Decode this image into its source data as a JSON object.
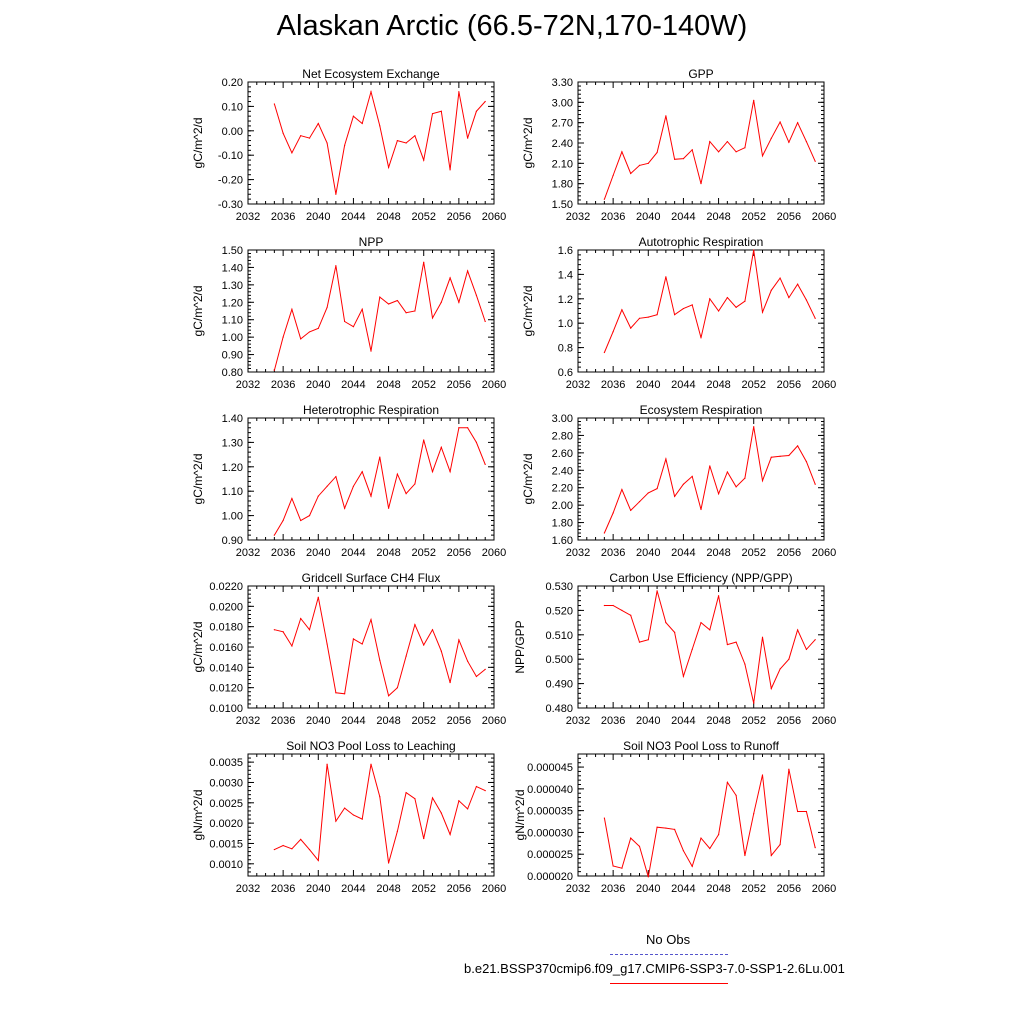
{
  "title": "Alaskan Arctic (66.5-72N,170-140W)",
  "colors": {
    "series": "#ff0000",
    "obs": "#5555cc",
    "axis": "#000000"
  },
  "legend": {
    "obs_label": "No Obs",
    "case_label": "b.e21.BSSP370cmip6.f09_g17.CMIP6-SSP3-7.0-SSP1-2.6Lu.001"
  },
  "chart_data": [
    {
      "type": "line",
      "title": "Net Ecosystem Exchange",
      "ylabel": "gC/m^2/d",
      "xlim": [
        2032,
        2060
      ],
      "xticks": [
        "2032",
        "2036",
        "2040",
        "2044",
        "2048",
        "2052",
        "2056",
        "2060"
      ],
      "ylim": [
        -0.3,
        0.2
      ],
      "yticks": [
        "-0.30",
        "-0.20",
        "-0.10",
        "0.00",
        "0.10",
        "0.20"
      ],
      "x": [
        2035,
        2036,
        2037,
        2038,
        2039,
        2040,
        2041,
        2042,
        2043,
        2044,
        2045,
        2046,
        2047,
        2048,
        2049,
        2050,
        2051,
        2052,
        2053,
        2054,
        2055,
        2056,
        2057,
        2058,
        2059
      ],
      "values": [
        0.11,
        -0.01,
        -0.09,
        -0.02,
        -0.03,
        0.03,
        -0.05,
        -0.26,
        -0.06,
        0.06,
        0.03,
        0.16,
        0.02,
        -0.15,
        -0.04,
        -0.05,
        -0.02,
        -0.12,
        0.07,
        0.08,
        -0.16,
        0.16,
        -0.03,
        0.08,
        0.12
      ]
    },
    {
      "type": "line",
      "title": "GPP",
      "ylabel": "gC/m^2/d",
      "xlim": [
        2032,
        2060
      ],
      "xticks": [
        "2032",
        "2036",
        "2040",
        "2044",
        "2048",
        "2052",
        "2056",
        "2060"
      ],
      "ylim": [
        1.5,
        3.3
      ],
      "yticks": [
        "1.50",
        "1.80",
        "2.10",
        "2.40",
        "2.70",
        "3.00",
        "3.30"
      ],
      "x": [
        2035,
        2036,
        2037,
        2038,
        2039,
        2040,
        2041,
        2042,
        2043,
        2044,
        2045,
        2046,
        2047,
        2048,
        2049,
        2050,
        2051,
        2052,
        2053,
        2054,
        2055,
        2056,
        2057,
        2058,
        2059
      ],
      "values": [
        1.57,
        1.92,
        2.27,
        1.95,
        2.07,
        2.1,
        2.26,
        2.8,
        2.16,
        2.17,
        2.3,
        1.8,
        2.42,
        2.27,
        2.42,
        2.27,
        2.33,
        3.03,
        2.21,
        2.47,
        2.71,
        2.41,
        2.7,
        2.42,
        2.13
      ]
    },
    {
      "type": "line",
      "title": "NPP",
      "ylabel": "gC/m^2/d",
      "xlim": [
        2032,
        2060
      ],
      "xticks": [
        "2032",
        "2036",
        "2040",
        "2044",
        "2048",
        "2052",
        "2056",
        "2060"
      ],
      "ylim": [
        0.8,
        1.5
      ],
      "yticks": [
        "0.80",
        "0.90",
        "1.00",
        "1.10",
        "1.20",
        "1.30",
        "1.40",
        "1.50"
      ],
      "x": [
        2035,
        2036,
        2037,
        2038,
        2039,
        2040,
        2041,
        2042,
        2043,
        2044,
        2045,
        2046,
        2047,
        2048,
        2049,
        2050,
        2051,
        2052,
        2053,
        2054,
        2055,
        2056,
        2057,
        2058,
        2059
      ],
      "values": [
        0.81,
        1.0,
        1.16,
        0.99,
        1.03,
        1.05,
        1.17,
        1.41,
        1.09,
        1.06,
        1.16,
        0.92,
        1.23,
        1.19,
        1.21,
        1.14,
        1.15,
        1.43,
        1.11,
        1.2,
        1.34,
        1.2,
        1.38,
        1.24,
        1.09
      ]
    },
    {
      "type": "line",
      "title": "Autotrophic Respiration",
      "ylabel": "gC/m^2/d",
      "xlim": [
        2032,
        2060
      ],
      "xticks": [
        "2032",
        "2036",
        "2040",
        "2044",
        "2048",
        "2052",
        "2056",
        "2060"
      ],
      "ylim": [
        0.6,
        1.6
      ],
      "yticks": [
        "0.6",
        "0.8",
        "1.0",
        "1.2",
        "1.4",
        "1.6"
      ],
      "x": [
        2035,
        2036,
        2037,
        2038,
        2039,
        2040,
        2041,
        2042,
        2043,
        2044,
        2045,
        2046,
        2047,
        2048,
        2049,
        2050,
        2051,
        2052,
        2053,
        2054,
        2055,
        2056,
        2057,
        2058,
        2059
      ],
      "values": [
        0.76,
        0.93,
        1.11,
        0.96,
        1.04,
        1.05,
        1.07,
        1.38,
        1.07,
        1.12,
        1.15,
        0.88,
        1.2,
        1.1,
        1.21,
        1.13,
        1.18,
        1.6,
        1.09,
        1.27,
        1.37,
        1.21,
        1.32,
        1.19,
        1.04
      ]
    },
    {
      "type": "line",
      "title": "Heterotrophic Respiration",
      "ylabel": "gC/m^2/d",
      "xlim": [
        2032,
        2060
      ],
      "xticks": [
        "2032",
        "2036",
        "2040",
        "2044",
        "2048",
        "2052",
        "2056",
        "2060"
      ],
      "ylim": [
        0.9,
        1.4
      ],
      "yticks": [
        "0.90",
        "1.00",
        "1.10",
        "1.20",
        "1.30",
        "1.40"
      ],
      "x": [
        2035,
        2036,
        2037,
        2038,
        2039,
        2040,
        2041,
        2042,
        2043,
        2044,
        2045,
        2046,
        2047,
        2048,
        2049,
        2050,
        2051,
        2052,
        2053,
        2054,
        2055,
        2056,
        2057,
        2058,
        2059
      ],
      "values": [
        0.92,
        0.98,
        1.07,
        0.98,
        1.0,
        1.08,
        1.12,
        1.16,
        1.03,
        1.12,
        1.18,
        1.08,
        1.24,
        1.03,
        1.17,
        1.09,
        1.13,
        1.31,
        1.18,
        1.28,
        1.18,
        1.36,
        1.36,
        1.3,
        1.21
      ]
    },
    {
      "type": "line",
      "title": "Ecosystem Respiration",
      "ylabel": "gC/m^2/d",
      "xlim": [
        2032,
        2060
      ],
      "xticks": [
        "2032",
        "2036",
        "2040",
        "2044",
        "2048",
        "2052",
        "2056",
        "2060"
      ],
      "ylim": [
        1.6,
        3.0
      ],
      "yticks": [
        "1.60",
        "1.80",
        "2.00",
        "2.20",
        "2.40",
        "2.60",
        "2.80",
        "3.00"
      ],
      "x": [
        2035,
        2036,
        2037,
        2038,
        2039,
        2040,
        2041,
        2042,
        2043,
        2044,
        2045,
        2046,
        2047,
        2048,
        2049,
        2050,
        2051,
        2052,
        2053,
        2054,
        2055,
        2056,
        2057,
        2058,
        2059
      ],
      "values": [
        1.68,
        1.91,
        2.18,
        1.94,
        2.04,
        2.14,
        2.19,
        2.53,
        2.1,
        2.24,
        2.33,
        1.95,
        2.45,
        2.13,
        2.38,
        2.21,
        2.31,
        2.9,
        2.28,
        2.55,
        2.56,
        2.57,
        2.68,
        2.5,
        2.24
      ]
    },
    {
      "type": "line",
      "title": "Gridcell Surface CH4 Flux",
      "ylabel": "gC/m^2/d",
      "xlim": [
        2032,
        2060
      ],
      "xticks": [
        "2032",
        "2036",
        "2040",
        "2044",
        "2048",
        "2052",
        "2056",
        "2060"
      ],
      "ylim": [
        0.01,
        0.022
      ],
      "yticks": [
        "0.0100",
        "0.0120",
        "0.0140",
        "0.0160",
        "0.0180",
        "0.0200",
        "0.0220"
      ],
      "x": [
        2035,
        2036,
        2037,
        2038,
        2039,
        2040,
        2041,
        2042,
        2043,
        2044,
        2045,
        2046,
        2047,
        2048,
        2049,
        2050,
        2051,
        2052,
        2053,
        2054,
        2055,
        2056,
        2057,
        2058,
        2059
      ],
      "values": [
        0.0177,
        0.0175,
        0.0161,
        0.0188,
        0.0177,
        0.0209,
        0.0163,
        0.0115,
        0.0114,
        0.0168,
        0.0163,
        0.0187,
        0.0147,
        0.0112,
        0.012,
        0.0151,
        0.0182,
        0.0162,
        0.0177,
        0.0156,
        0.0125,
        0.0167,
        0.0146,
        0.0131,
        0.0138
      ]
    },
    {
      "type": "line",
      "title": "Carbon Use Efficiency (NPP/GPP)",
      "ylabel": "NPP/GPP",
      "xlim": [
        2032,
        2060
      ],
      "xticks": [
        "2032",
        "2036",
        "2040",
        "2044",
        "2048",
        "2052",
        "2056",
        "2060"
      ],
      "ylim": [
        0.48,
        0.53
      ],
      "yticks": [
        "0.480",
        "0.490",
        "0.500",
        "0.510",
        "0.520",
        "0.530"
      ],
      "x": [
        2035,
        2036,
        2037,
        2038,
        2039,
        2040,
        2041,
        2042,
        2043,
        2044,
        2045,
        2046,
        2047,
        2048,
        2049,
        2050,
        2051,
        2052,
        2053,
        2054,
        2055,
        2056,
        2057,
        2058,
        2059
      ],
      "values": [
        0.522,
        0.522,
        0.52,
        0.518,
        0.507,
        0.508,
        0.528,
        0.515,
        0.511,
        0.493,
        0.504,
        0.515,
        0.512,
        0.526,
        0.506,
        0.507,
        0.498,
        0.482,
        0.509,
        0.488,
        0.496,
        0.5,
        0.512,
        0.504,
        0.508
      ]
    },
    {
      "type": "line",
      "title": "Soil NO3 Pool Loss to Leaching",
      "ylabel": "gN/m^2/d",
      "xlim": [
        2032,
        2060
      ],
      "xticks": [
        "2032",
        "2036",
        "2040",
        "2044",
        "2048",
        "2052",
        "2056",
        "2060"
      ],
      "ylim": [
        0.0007,
        0.0037
      ],
      "yticks": [
        "0.0010",
        "0.0015",
        "0.0020",
        "0.0025",
        "0.0030",
        "0.0035"
      ],
      "x": [
        2035,
        2036,
        2037,
        2038,
        2039,
        2040,
        2041,
        2042,
        2043,
        2044,
        2045,
        2046,
        2047,
        2048,
        2049,
        2050,
        2051,
        2052,
        2053,
        2054,
        2055,
        2056,
        2057,
        2058,
        2059
      ],
      "values": [
        0.00135,
        0.00145,
        0.00137,
        0.0016,
        0.00135,
        0.00108,
        0.00345,
        0.00205,
        0.00237,
        0.0022,
        0.0021,
        0.00345,
        0.00265,
        0.00102,
        0.0018,
        0.00275,
        0.0026,
        0.00162,
        0.00262,
        0.00225,
        0.00172,
        0.00255,
        0.00235,
        0.0029,
        0.0028
      ]
    },
    {
      "type": "line",
      "title": "Soil NO3 Pool Loss to Runoff",
      "ylabel": "gN/m^2/d",
      "xlim": [
        2032,
        2060
      ],
      "xticks": [
        "2032",
        "2036",
        "2040",
        "2044",
        "2048",
        "2052",
        "2056",
        "2060"
      ],
      "ylim": [
        2e-05,
        4.8e-05
      ],
      "yticks": [
        "0.000020",
        "0.000025",
        "0.000030",
        "0.000035",
        "0.000040",
        "0.000045"
      ],
      "x": [
        2035,
        2036,
        2037,
        2038,
        2039,
        2040,
        2041,
        2042,
        2043,
        2044,
        2045,
        2046,
        2047,
        2048,
        2049,
        2050,
        2051,
        2052,
        2053,
        2054,
        2055,
        2056,
        2057,
        2058,
        2059
      ],
      "values": [
        3.33e-05,
        2.23e-05,
        2.18e-05,
        2.87e-05,
        2.68e-05,
        1.98e-05,
        3.12e-05,
        3.1e-05,
        3.07e-05,
        2.58e-05,
        2.22e-05,
        2.87e-05,
        2.63e-05,
        2.95e-05,
        4.15e-05,
        3.85e-05,
        2.47e-05,
        3.43e-05,
        4.32e-05,
        2.47e-05,
        2.72e-05,
        4.45e-05,
        3.48e-05,
        3.48e-05,
        2.65e-05
      ]
    }
  ]
}
